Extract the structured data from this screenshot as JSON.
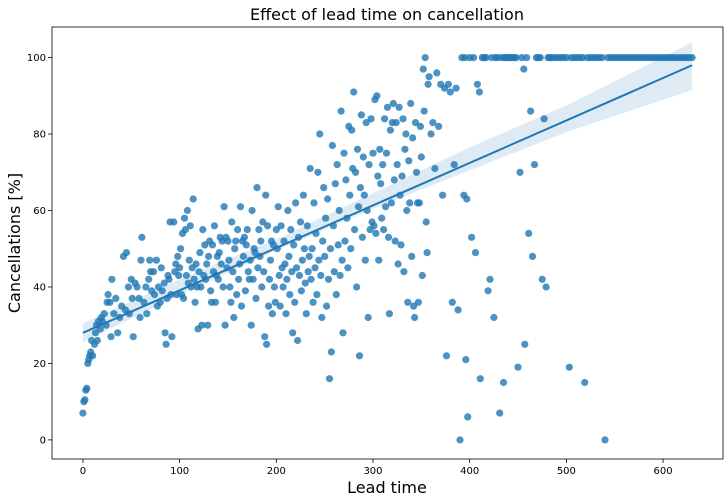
{
  "chart_data": {
    "type": "scatter",
    "title": "Effect of lead time on cancellation",
    "xlabel": "Lead time",
    "ylabel": "Cancellations [%]",
    "xlim": [
      -32,
      662
    ],
    "ylim": [
      -5,
      108
    ],
    "xticks": [
      0,
      100,
      200,
      300,
      400,
      500,
      600
    ],
    "yticks": [
      0,
      20,
      40,
      60,
      80,
      100
    ],
    "grid": false,
    "color": "#1f77b4",
    "regression": {
      "x": [
        0,
        630
      ],
      "y": [
        28,
        98
      ],
      "ci_band": {
        "x": [
          0,
          100,
          200,
          300,
          400,
          500,
          630
        ],
        "lower": [
          25.5,
          38.0,
          49.5,
          60.5,
          70.5,
          80.5,
          91.5
        ],
        "upper": [
          30.5,
          42.0,
          52.5,
          64.5,
          76.5,
          87.5,
          104.0
        ]
      }
    },
    "points": [
      [
        0,
        7
      ],
      [
        1,
        10
      ],
      [
        2,
        10.5
      ],
      [
        3,
        13
      ],
      [
        4,
        13.5
      ],
      [
        5,
        20
      ],
      [
        6,
        21
      ],
      [
        7,
        22
      ],
      [
        8,
        23
      ],
      [
        9,
        26
      ],
      [
        10,
        22
      ],
      [
        12,
        25
      ],
      [
        13,
        28
      ],
      [
        14,
        30
      ],
      [
        15,
        26
      ],
      [
        16,
        31
      ],
      [
        18,
        29
      ],
      [
        19,
        32
      ],
      [
        20,
        31
      ],
      [
        22,
        33
      ],
      [
        24,
        30
      ],
      [
        25,
        36
      ],
      [
        26,
        38
      ],
      [
        28,
        36
      ],
      [
        29,
        27
      ],
      [
        30,
        42
      ],
      [
        32,
        33
      ],
      [
        34,
        37
      ],
      [
        36,
        28
      ],
      [
        38,
        32
      ],
      [
        40,
        35
      ],
      [
        42,
        48
      ],
      [
        44,
        34
      ],
      [
        45,
        49
      ],
      [
        47,
        40
      ],
      [
        48,
        33
      ],
      [
        50,
        42
      ],
      [
        51,
        37
      ],
      [
        52,
        27
      ],
      [
        54,
        41
      ],
      [
        56,
        40
      ],
      [
        58,
        37
      ],
      [
        59,
        32
      ],
      [
        60,
        47
      ],
      [
        61,
        53
      ],
      [
        63,
        36
      ],
      [
        65,
        40
      ],
      [
        66,
        33
      ],
      [
        68,
        42
      ],
      [
        69,
        47
      ],
      [
        70,
        44
      ],
      [
        71,
        39
      ],
      [
        73,
        44
      ],
      [
        74,
        38
      ],
      [
        76,
        47
      ],
      [
        77,
        35
      ],
      [
        78,
        40
      ],
      [
        80,
        36
      ],
      [
        81,
        45
      ],
      [
        82,
        39
      ],
      [
        84,
        41
      ],
      [
        85,
        28
      ],
      [
        86,
        25
      ],
      [
        87,
        37
      ],
      [
        88,
        43
      ],
      [
        89,
        42
      ],
      [
        90,
        57
      ],
      [
        91,
        38
      ],
      [
        92,
        27
      ],
      [
        94,
        57
      ],
      [
        95,
        44
      ],
      [
        96,
        46
      ],
      [
        97,
        38
      ],
      [
        98,
        48
      ],
      [
        99,
        43
      ],
      [
        100,
        45
      ],
      [
        101,
        50
      ],
      [
        102,
        38
      ],
      [
        103,
        54
      ],
      [
        104,
        37
      ],
      [
        105,
        58
      ],
      [
        106,
        55
      ],
      [
        107,
        43
      ],
      [
        108,
        60
      ],
      [
        109,
        41
      ],
      [
        110,
        47
      ],
      [
        111,
        56
      ],
      [
        112,
        40
      ],
      [
        113,
        45
      ],
      [
        114,
        63
      ],
      [
        115,
        42
      ],
      [
        116,
        36
      ],
      [
        117,
        46
      ],
      [
        118,
        40
      ],
      [
        119,
        29
      ],
      [
        120,
        44
      ],
      [
        121,
        49
      ],
      [
        122,
        40
      ],
      [
        123,
        30
      ],
      [
        124,
        55
      ],
      [
        125,
        43
      ],
      [
        126,
        51
      ],
      [
        127,
        42
      ],
      [
        128,
        46
      ],
      [
        129,
        30
      ],
      [
        130,
        48
      ],
      [
        131,
        52
      ],
      [
        132,
        39
      ],
      [
        133,
        36
      ],
      [
        134,
        51
      ],
      [
        135,
        44
      ],
      [
        136,
        56
      ],
      [
        137,
        36
      ],
      [
        138,
        43
      ],
      [
        139,
        48
      ],
      [
        140,
        42
      ],
      [
        141,
        49
      ],
      [
        142,
        53
      ],
      [
        143,
        46
      ],
      [
        144,
        52
      ],
      [
        145,
        40
      ],
      [
        146,
        61
      ],
      [
        147,
        30
      ],
      [
        148,
        53
      ],
      [
        149,
        45
      ],
      [
        150,
        52
      ],
      [
        151,
        47
      ],
      [
        152,
        40
      ],
      [
        153,
        36
      ],
      [
        154,
        57
      ],
      [
        155,
        44
      ],
      [
        156,
        32
      ],
      [
        157,
        50
      ],
      [
        158,
        52
      ],
      [
        159,
        38
      ],
      [
        160,
        55
      ],
      [
        161,
        42
      ],
      [
        162,
        46
      ],
      [
        163,
        61
      ],
      [
        164,
        35
      ],
      [
        165,
        52
      ],
      [
        166,
        48
      ],
      [
        167,
        53
      ],
      [
        168,
        39
      ],
      [
        169,
        51
      ],
      [
        170,
        55
      ],
      [
        171,
        44
      ],
      [
        172,
        42
      ],
      [
        173,
        47
      ],
      [
        174,
        30
      ],
      [
        175,
        60
      ],
      [
        176,
        42
      ],
      [
        177,
        50
      ],
      [
        178,
        49
      ],
      [
        179,
        37
      ],
      [
        180,
        66
      ],
      [
        181,
        45
      ],
      [
        182,
        55
      ],
      [
        183,
        48
      ],
      [
        184,
        52
      ],
      [
        185,
        40
      ],
      [
        186,
        57
      ],
      [
        187,
        44
      ],
      [
        188,
        27
      ],
      [
        189,
        64
      ],
      [
        190,
        25
      ],
      [
        191,
        56
      ],
      [
        192,
        35
      ],
      [
        193,
        42
      ],
      [
        194,
        47
      ],
      [
        195,
        52
      ],
      [
        196,
        33
      ],
      [
        197,
        51
      ],
      [
        198,
        40
      ],
      [
        199,
        36
      ],
      [
        200,
        55
      ],
      [
        201,
        50
      ],
      [
        202,
        61
      ],
      [
        203,
        43
      ],
      [
        204,
        35
      ],
      [
        205,
        56
      ],
      [
        206,
        45
      ],
      [
        207,
        40
      ],
      [
        208,
        52
      ],
      [
        209,
        46
      ],
      [
        210,
        33
      ],
      [
        211,
        42
      ],
      [
        212,
        60
      ],
      [
        213,
        48
      ],
      [
        214,
        38
      ],
      [
        215,
        55
      ],
      [
        216,
        44
      ],
      [
        217,
        28
      ],
      [
        218,
        51
      ],
      [
        219,
        36
      ],
      [
        220,
        62
      ],
      [
        221,
        45
      ],
      [
        222,
        26
      ],
      [
        223,
        53
      ],
      [
        224,
        43
      ],
      [
        225,
        57
      ],
      [
        226,
        39
      ],
      [
        227,
        47
      ],
      [
        228,
        64
      ],
      [
        229,
        50
      ],
      [
        230,
        41
      ],
      [
        231,
        33
      ],
      [
        232,
        56
      ],
      [
        233,
        44
      ],
      [
        234,
        48
      ],
      [
        235,
        71
      ],
      [
        236,
        42
      ],
      [
        237,
        50
      ],
      [
        238,
        36
      ],
      [
        239,
        62
      ],
      [
        240,
        45
      ],
      [
        241,
        54
      ],
      [
        242,
        38
      ],
      [
        243,
        70
      ],
      [
        244,
        47
      ],
      [
        245,
        80
      ],
      [
        246,
        43
      ],
      [
        247,
        32
      ],
      [
        248,
        52
      ],
      [
        249,
        66
      ],
      [
        250,
        48
      ],
      [
        251,
        58
      ],
      [
        252,
        35
      ],
      [
        253,
        63
      ],
      [
        254,
        42
      ],
      [
        255,
        16
      ],
      [
        256,
        50
      ],
      [
        257,
        23
      ],
      [
        258,
        77
      ],
      [
        259,
        56
      ],
      [
        260,
        44
      ],
      [
        261,
        67
      ],
      [
        262,
        38
      ],
      [
        263,
        72
      ],
      [
        264,
        51
      ],
      [
        265,
        60
      ],
      [
        266,
        43
      ],
      [
        267,
        86
      ],
      [
        268,
        47
      ],
      [
        269,
        28
      ],
      [
        270,
        75
      ],
      [
        271,
        52
      ],
      [
        272,
        68
      ],
      [
        273,
        58
      ],
      [
        274,
        45
      ],
      [
        275,
        82
      ],
      [
        276,
        64
      ],
      [
        277,
        50
      ],
      [
        278,
        81
      ],
      [
        279,
        71
      ],
      [
        280,
        91
      ],
      [
        281,
        55
      ],
      [
        282,
        70
      ],
      [
        283,
        40
      ],
      [
        284,
        76
      ],
      [
        285,
        61
      ],
      [
        286,
        22
      ],
      [
        287,
        66
      ],
      [
        288,
        85
      ],
      [
        289,
        53
      ],
      [
        290,
        74
      ],
      [
        291,
        64
      ],
      [
        292,
        47
      ],
      [
        293,
        83
      ],
      [
        294,
        60
      ],
      [
        295,
        32
      ],
      [
        296,
        72
      ],
      [
        297,
        55
      ],
      [
        298,
        84
      ],
      [
        299,
        57
      ],
      [
        300,
        75
      ],
      [
        301,
        56
      ],
      [
        302,
        89
      ],
      [
        303,
        54
      ],
      [
        304,
        90
      ],
      [
        305,
        69
      ],
      [
        306,
        47
      ],
      [
        307,
        76
      ],
      [
        308,
        67
      ],
      [
        309,
        58
      ],
      [
        310,
        72
      ],
      [
        311,
        55
      ],
      [
        312,
        84
      ],
      [
        313,
        61
      ],
      [
        314,
        75
      ],
      [
        315,
        87
      ],
      [
        316,
        53
      ],
      [
        317,
        33
      ],
      [
        318,
        81
      ],
      [
        319,
        62
      ],
      [
        320,
        83
      ],
      [
        321,
        88
      ],
      [
        322,
        68
      ],
      [
        323,
        52
      ],
      [
        324,
        83
      ],
      [
        325,
        72
      ],
      [
        326,
        46
      ],
      [
        327,
        87
      ],
      [
        328,
        64
      ],
      [
        329,
        51
      ],
      [
        330,
        69
      ],
      [
        331,
        84
      ],
      [
        332,
        44
      ],
      [
        333,
        76
      ],
      [
        334,
        80
      ],
      [
        335,
        60
      ],
      [
        336,
        36
      ],
      [
        337,
        73
      ],
      [
        338,
        62
      ],
      [
        339,
        88
      ],
      [
        340,
        48
      ],
      [
        341,
        79
      ],
      [
        342,
        35
      ],
      [
        343,
        32
      ],
      [
        344,
        83
      ],
      [
        345,
        70
      ],
      [
        346,
        62
      ],
      [
        347,
        36
      ],
      [
        348,
        62
      ],
      [
        349,
        82
      ],
      [
        350,
        74
      ],
      [
        351,
        43
      ],
      [
        352,
        97
      ],
      [
        353,
        86
      ],
      [
        354,
        100
      ],
      [
        355,
        57
      ],
      [
        356,
        49
      ],
      [
        357,
        93
      ],
      [
        358,
        95
      ],
      [
        360,
        80
      ],
      [
        362,
        83
      ],
      [
        364,
        71
      ],
      [
        366,
        96
      ],
      [
        368,
        82
      ],
      [
        370,
        93
      ],
      [
        372,
        64
      ],
      [
        374,
        92
      ],
      [
        376,
        22
      ],
      [
        378,
        93
      ],
      [
        380,
        91
      ],
      [
        382,
        36
      ],
      [
        384,
        72
      ],
      [
        386,
        92
      ],
      [
        388,
        34
      ],
      [
        390,
        0
      ],
      [
        392,
        100
      ],
      [
        394,
        64
      ],
      [
        395,
        100
      ],
      [
        396,
        21
      ],
      [
        397,
        63
      ],
      [
        398,
        6
      ],
      [
        400,
        100
      ],
      [
        402,
        53
      ],
      [
        404,
        100
      ],
      [
        406,
        49
      ],
      [
        408,
        93
      ],
      [
        410,
        91
      ],
      [
        411,
        16
      ],
      [
        413,
        100
      ],
      [
        415,
        100
      ],
      [
        417,
        100
      ],
      [
        419,
        39
      ],
      [
        421,
        42
      ],
      [
        423,
        100
      ],
      [
        425,
        32
      ],
      [
        427,
        100
      ],
      [
        429,
        100
      ],
      [
        431,
        7
      ],
      [
        433,
        100
      ],
      [
        435,
        15
      ],
      [
        436,
        100
      ],
      [
        438,
        100
      ],
      [
        440,
        100
      ],
      [
        442,
        100
      ],
      [
        444,
        100
      ],
      [
        446,
        100
      ],
      [
        448,
        100
      ],
      [
        450,
        19
      ],
      [
        452,
        70
      ],
      [
        454,
        100
      ],
      [
        456,
        97
      ],
      [
        457,
        25
      ],
      [
        459,
        100
      ],
      [
        461,
        54
      ],
      [
        463,
        86
      ],
      [
        465,
        48
      ],
      [
        467,
        72
      ],
      [
        469,
        100
      ],
      [
        471,
        100
      ],
      [
        473,
        100
      ],
      [
        475,
        42
      ],
      [
        477,
        84
      ],
      [
        479,
        40
      ],
      [
        481,
        100
      ],
      [
        483,
        100
      ],
      [
        485,
        100
      ],
      [
        488,
        100
      ],
      [
        491,
        100
      ],
      [
        494,
        100
      ],
      [
        497,
        100
      ],
      [
        500,
        100
      ],
      [
        503,
        19
      ],
      [
        505,
        100
      ],
      [
        508,
        100
      ],
      [
        511,
        100
      ],
      [
        514,
        100
      ],
      [
        517,
        100
      ],
      [
        519,
        15
      ],
      [
        522,
        100
      ],
      [
        525,
        100
      ],
      [
        528,
        100
      ],
      [
        531,
        100
      ],
      [
        534,
        100
      ],
      [
        537,
        100
      ],
      [
        540,
        0
      ],
      [
        543,
        100
      ],
      [
        546,
        100
      ],
      [
        549,
        100
      ],
      [
        552,
        100
      ],
      [
        555,
        100
      ],
      [
        558,
        100
      ],
      [
        561,
        100
      ],
      [
        564,
        100
      ],
      [
        567,
        100
      ],
      [
        570,
        100
      ],
      [
        573,
        100
      ],
      [
        576,
        100
      ],
      [
        579,
        100
      ],
      [
        582,
        100
      ],
      [
        585,
        100
      ],
      [
        588,
        100
      ],
      [
        591,
        100
      ],
      [
        594,
        100
      ],
      [
        597,
        100
      ],
      [
        600,
        100
      ],
      [
        603,
        100
      ],
      [
        606,
        100
      ],
      [
        609,
        100
      ],
      [
        612,
        100
      ],
      [
        615,
        100
      ],
      [
        618,
        100
      ],
      [
        621,
        100
      ],
      [
        624,
        100
      ],
      [
        627,
        100
      ],
      [
        630,
        100
      ]
    ]
  }
}
